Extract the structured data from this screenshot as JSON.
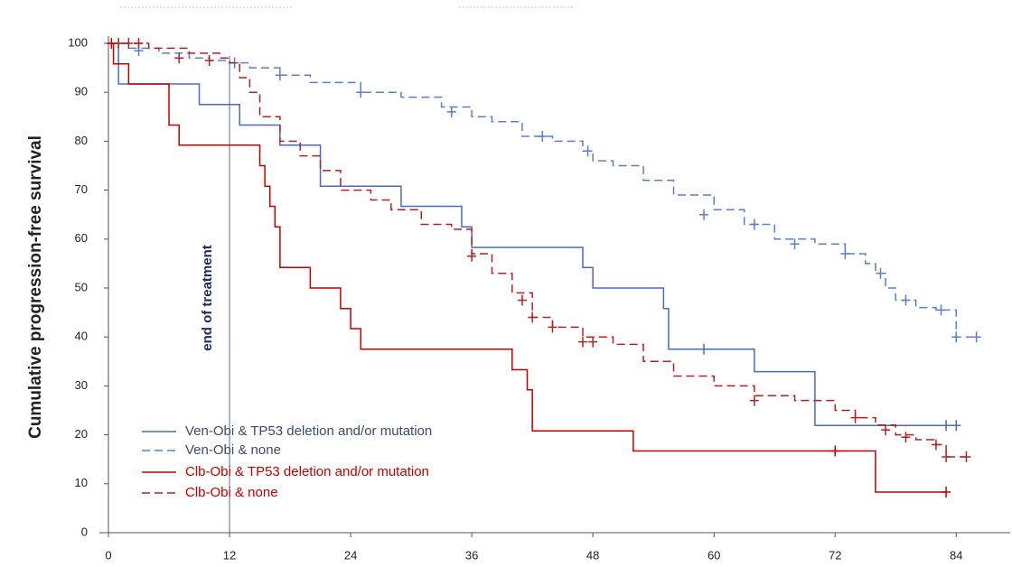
{
  "chart_data": {
    "type": "step",
    "y_label": "Cumulative progression-free survival",
    "xlim": [
      0,
      87
    ],
    "ylim": [
      0,
      100
    ],
    "xticks": [
      0,
      12,
      24,
      36,
      48,
      60,
      72,
      84
    ],
    "yticks": [
      0,
      10,
      20,
      30,
      40,
      50,
      60,
      70,
      80,
      90,
      100
    ],
    "legend": "lower left",
    "annotation": {
      "text": "end of treatment",
      "x": 12
    },
    "series": [
      {
        "name": "Ven-Obi & TP53 deletion and/or mutation",
        "color": "#4a6cb8",
        "dash": "solid",
        "legend_color": "#3d4a6a",
        "x": [
          0,
          1,
          9,
          13,
          17,
          21,
          29,
          35,
          36,
          47,
          48,
          55,
          55.5,
          64,
          70,
          84
        ],
        "values": [
          100,
          91.7,
          87.5,
          83.3,
          79.2,
          70.8,
          66.7,
          62.5,
          58.3,
          54.2,
          50,
          45.8,
          37.5,
          32.9,
          21.9,
          21.9
        ],
        "censored": {
          "x": [
            59,
            83,
            84
          ],
          "values": [
            37.5,
            21.9,
            21.9
          ]
        }
      },
      {
        "name": "Ven-Obi & none",
        "color": "#5b7ec8",
        "dash": "dashed",
        "legend_color": "#3d4a6a",
        "x": [
          0,
          2,
          5,
          8,
          10,
          12,
          14,
          17,
          20,
          25,
          29,
          33,
          36,
          38,
          41,
          44,
          47,
          48,
          50,
          53,
          56,
          60,
          63,
          66,
          70,
          73,
          75,
          76,
          77,
          78,
          80,
          82,
          84,
          86
        ],
        "values": [
          100,
          99,
          98,
          97,
          96.5,
          96,
          95,
          93.5,
          92,
          90,
          89,
          87,
          85,
          84,
          81,
          80,
          78,
          76,
          75,
          72,
          69,
          66,
          63,
          60,
          59,
          57,
          55,
          53,
          50,
          47.5,
          46,
          45.5,
          40,
          40
        ],
        "censored": {
          "x": [
            3,
            12.5,
            17,
            25,
            34,
            43,
            47.5,
            59,
            64,
            68,
            73,
            76.5,
            79,
            82.5,
            84,
            86
          ],
          "values": [
            98.5,
            96,
            93.5,
            90,
            86,
            81,
            78,
            65,
            63,
            59,
            57,
            53,
            47.5,
            45.5,
            40,
            40
          ]
        }
      },
      {
        "name": "Clb-Obi & TP53 deletion and/or mutation",
        "color": "#c00000",
        "dash": "solid",
        "legend_color": "#c00000",
        "x": [
          0,
          0.5,
          2,
          6,
          7,
          15,
          15.5,
          16,
          16.5,
          17,
          20,
          23,
          24,
          25,
          40,
          41.5,
          42,
          52,
          76,
          83
        ],
        "values": [
          100,
          95.8,
          91.7,
          83.3,
          79.2,
          75,
          70.8,
          66.7,
          62.5,
          54.2,
          50,
          45.8,
          41.7,
          37.5,
          33.3,
          29.2,
          20.8,
          16.7,
          8.3,
          8.3
        ],
        "censored": {
          "x": [
            0.3,
            72,
            83
          ],
          "values": [
            100,
            16.7,
            8.3
          ]
        }
      },
      {
        "name": "Clb-Obi & none",
        "color": "#b22222",
        "dash": "dashed",
        "legend_color": "#c00000",
        "x": [
          0,
          4,
          8,
          11,
          12,
          13,
          14,
          15,
          17,
          19,
          21,
          23,
          26,
          28,
          31,
          34,
          36,
          38,
          40,
          42,
          44,
          47,
          50,
          53,
          56,
          60,
          64,
          68,
          72,
          74,
          76,
          78,
          80,
          82,
          83,
          85
        ],
        "values": [
          100,
          99,
          98,
          97,
          96,
          93,
          90,
          85,
          80,
          77,
          74,
          70,
          68,
          66,
          63,
          62,
          57,
          53,
          49,
          44,
          42,
          40,
          38.5,
          35,
          32,
          30,
          28,
          27,
          25,
          23.5,
          22,
          20,
          19,
          18,
          15.5,
          15.5
        ],
        "censored": {
          "x": [
            1,
            2,
            3,
            7,
            10,
            36,
            41,
            42,
            44,
            47,
            48,
            64,
            74,
            77,
            79,
            82,
            83,
            85
          ],
          "values": [
            100,
            100,
            100,
            97,
            96.5,
            56.5,
            47.5,
            44,
            42,
            39,
            39,
            27,
            23.5,
            21,
            19.5,
            18,
            15.5,
            15.5
          ]
        }
      }
    ]
  }
}
